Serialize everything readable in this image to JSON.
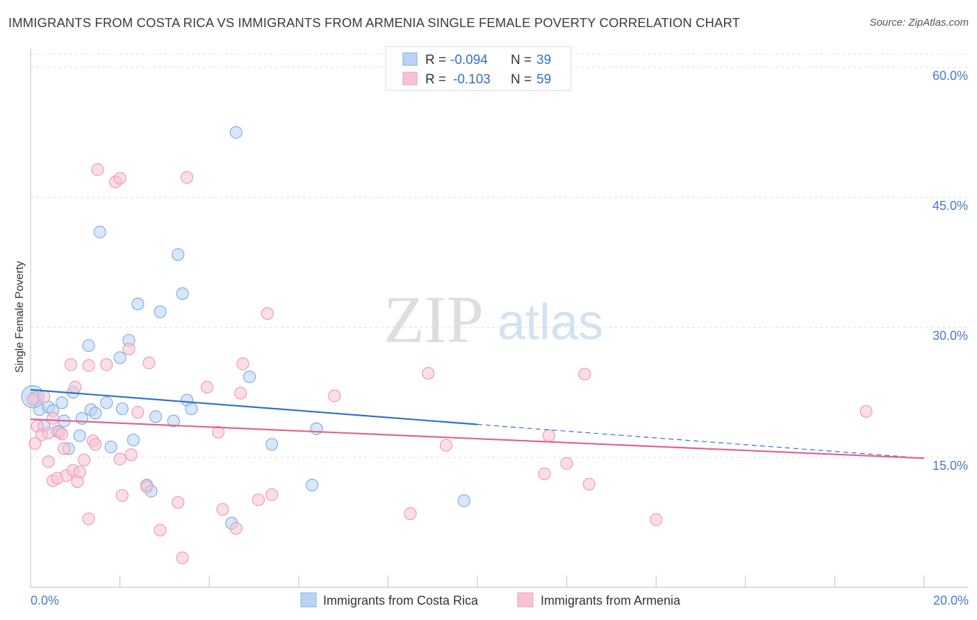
{
  "title": "IMMIGRANTS FROM COSTA RICA VS IMMIGRANTS FROM ARMENIA SINGLE FEMALE POVERTY CORRELATION CHART",
  "source": "Source: ZipAtlas.com",
  "watermark": {
    "zip": "ZIP",
    "atlas": "atlas"
  },
  "colors": {
    "blue_fill": "#b9d3f2",
    "blue_stroke": "#7faee6",
    "blue_line": "#2f6fcc",
    "pink_fill": "#f7c3d4",
    "pink_stroke": "#ee9ab6",
    "pink_line": "#e0638d",
    "axis_text": "#4a78c8",
    "value_text": "#2f6fcc"
  },
  "chart_data": {
    "type": "scatter",
    "ylabel": "Single Female Poverty",
    "xlim": [
      0,
      20
    ],
    "ylim": [
      0,
      60
    ],
    "x_tick_labels": [
      "0.0%",
      "20.0%"
    ],
    "y_ticks": [
      15,
      30,
      45,
      60
    ],
    "y_tick_labels": [
      "15.0%",
      "30.0%",
      "45.0%",
      "60.0%"
    ],
    "legend": [
      {
        "r_label": "R = ",
        "r_value": "-0.094",
        "n_label": "N = ",
        "n_value": "39"
      },
      {
        "r_label": "R = ",
        "r_value": "-0.103",
        "n_label": "N = ",
        "n_value": "59"
      }
    ],
    "series": [
      {
        "name": "Immigrants from Costa Rica",
        "color": "blue",
        "trend": {
          "x0": 0,
          "y0": 22.8,
          "x1": 10,
          "y1": 18.8,
          "dash_x1": 20,
          "dash_y1": 14.9
        },
        "points": [
          [
            0.1,
            21.9
          ],
          [
            0.2,
            20.5
          ],
          [
            0.3,
            18.6
          ],
          [
            0.4,
            20.8
          ],
          [
            0.5,
            20.4
          ],
          [
            0.6,
            18.0
          ],
          [
            0.7,
            21.3
          ],
          [
            0.75,
            19.2
          ],
          [
            0.85,
            16.0
          ],
          [
            0.95,
            22.5
          ],
          [
            1.1,
            17.5
          ],
          [
            1.15,
            19.5
          ],
          [
            1.3,
            27.9
          ],
          [
            1.35,
            20.5
          ],
          [
            1.45,
            20.1
          ],
          [
            1.55,
            41.0
          ],
          [
            1.7,
            21.3
          ],
          [
            1.8,
            16.2
          ],
          [
            2.0,
            26.5
          ],
          [
            2.05,
            20.6
          ],
          [
            2.2,
            28.5
          ],
          [
            2.3,
            17.0
          ],
          [
            2.4,
            32.7
          ],
          [
            2.6,
            11.8
          ],
          [
            2.7,
            11.1
          ],
          [
            2.8,
            19.7
          ],
          [
            2.9,
            31.8
          ],
          [
            3.2,
            19.2
          ],
          [
            3.3,
            38.4
          ],
          [
            3.4,
            33.9
          ],
          [
            3.5,
            21.6
          ],
          [
            3.6,
            20.6
          ],
          [
            4.5,
            7.4
          ],
          [
            4.6,
            52.5
          ],
          [
            4.9,
            24.3
          ],
          [
            5.4,
            16.5
          ],
          [
            6.3,
            11.8
          ],
          [
            6.4,
            18.3
          ],
          [
            9.7,
            10.0
          ]
        ]
      },
      {
        "name": "Immigrants from Armenia",
        "color": "pink",
        "trend": {
          "x0": 0,
          "y0": 19.4,
          "x1": 20,
          "y1": 14.9
        },
        "points": [
          [
            0.05,
            21.7
          ],
          [
            0.1,
            16.6
          ],
          [
            0.15,
            18.6
          ],
          [
            0.25,
            17.6
          ],
          [
            0.3,
            22.0
          ],
          [
            0.4,
            17.8
          ],
          [
            0.4,
            14.5
          ],
          [
            0.5,
            19.5
          ],
          [
            0.5,
            12.3
          ],
          [
            0.6,
            12.6
          ],
          [
            0.65,
            17.9
          ],
          [
            0.7,
            17.7
          ],
          [
            0.75,
            16.0
          ],
          [
            0.8,
            12.9
          ],
          [
            0.9,
            25.7
          ],
          [
            0.95,
            13.5
          ],
          [
            1.0,
            23.1
          ],
          [
            1.05,
            12.2
          ],
          [
            1.1,
            13.3
          ],
          [
            1.2,
            14.7
          ],
          [
            1.3,
            7.9
          ],
          [
            1.3,
            25.6
          ],
          [
            1.4,
            16.9
          ],
          [
            1.45,
            16.5
          ],
          [
            1.5,
            48.2
          ],
          [
            1.7,
            25.7
          ],
          [
            1.9,
            46.8
          ],
          [
            2.0,
            14.8
          ],
          [
            2.0,
            47.2
          ],
          [
            2.05,
            10.6
          ],
          [
            2.2,
            27.5
          ],
          [
            2.25,
            15.3
          ],
          [
            2.4,
            20.2
          ],
          [
            2.6,
            11.6
          ],
          [
            2.65,
            25.9
          ],
          [
            2.9,
            6.6
          ],
          [
            3.3,
            9.8
          ],
          [
            3.4,
            3.4
          ],
          [
            3.5,
            47.3
          ],
          [
            3.95,
            23.1
          ],
          [
            4.2,
            17.9
          ],
          [
            4.3,
            9.0
          ],
          [
            4.6,
            6.8
          ],
          [
            4.7,
            22.4
          ],
          [
            4.75,
            25.8
          ],
          [
            5.1,
            10.1
          ],
          [
            5.3,
            31.6
          ],
          [
            5.4,
            10.7
          ],
          [
            6.8,
            22.1
          ],
          [
            8.5,
            8.5
          ],
          [
            8.9,
            24.7
          ],
          [
            9.3,
            16.4
          ],
          [
            11.5,
            13.1
          ],
          [
            11.6,
            17.5
          ],
          [
            12.0,
            14.3
          ],
          [
            12.4,
            24.6
          ],
          [
            12.5,
            11.9
          ],
          [
            14.0,
            7.8
          ],
          [
            18.7,
            20.3
          ]
        ]
      }
    ]
  }
}
